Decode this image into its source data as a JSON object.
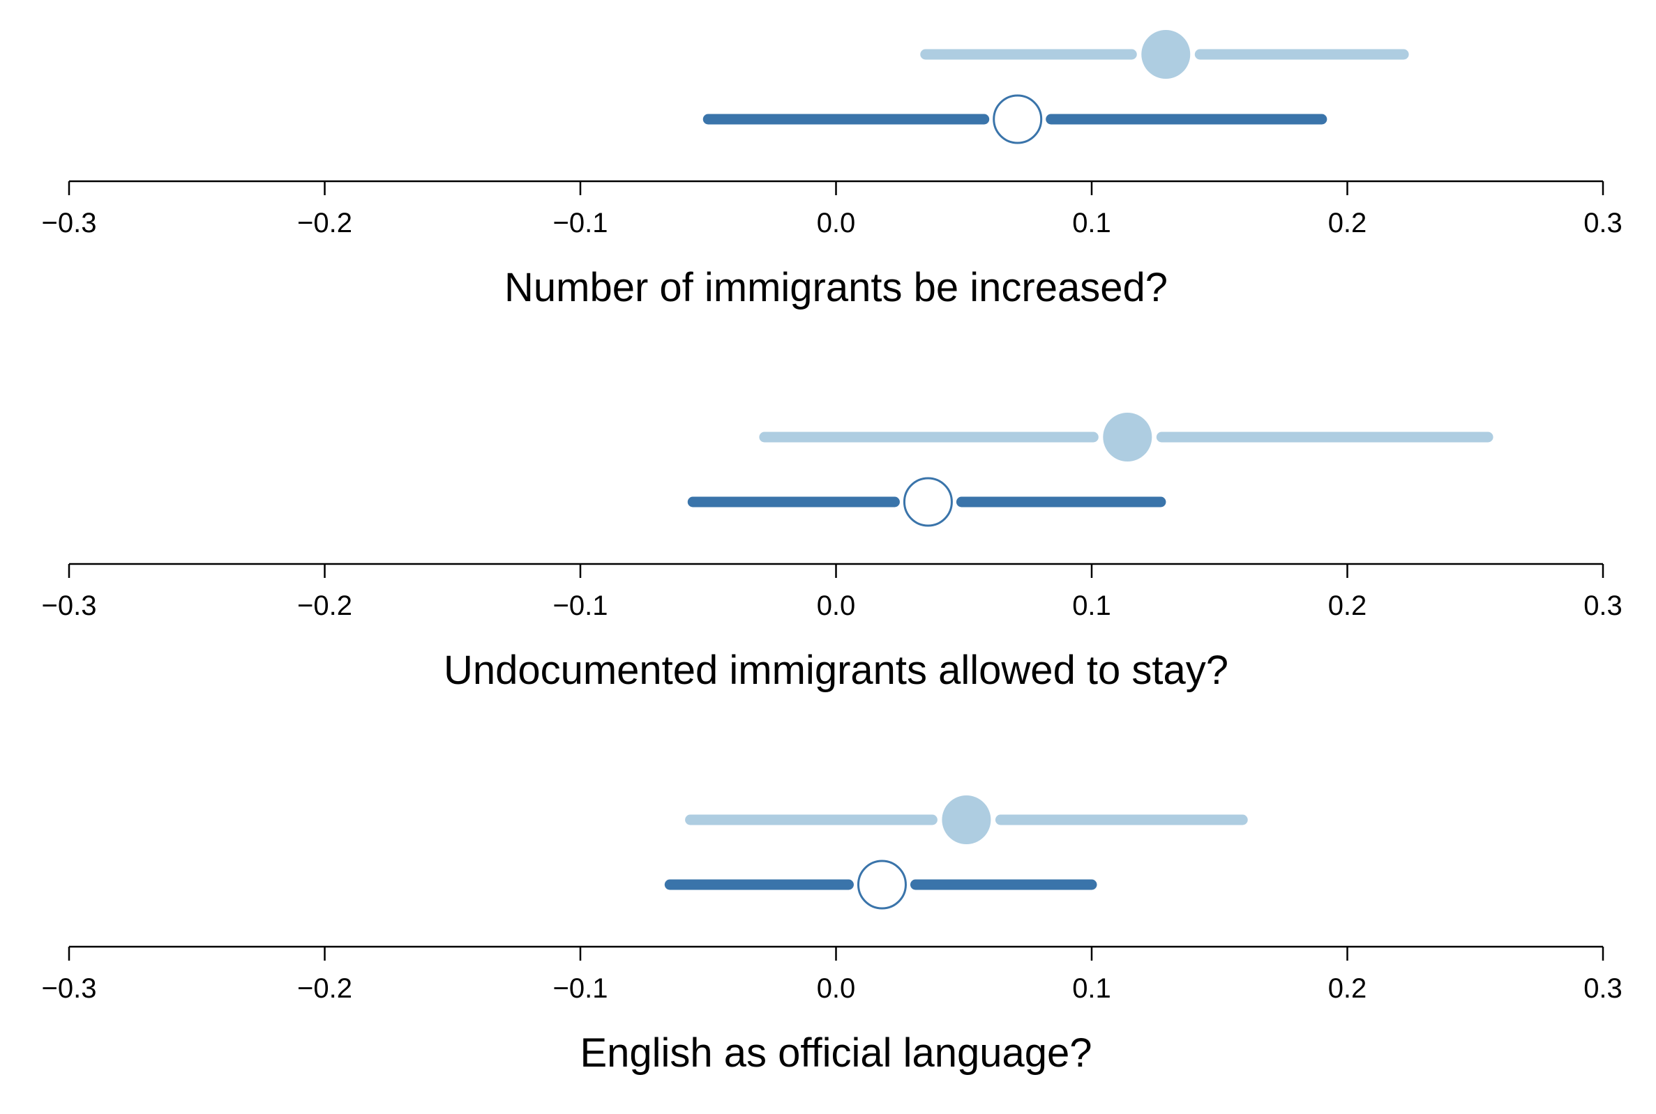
{
  "colors": {
    "light_series": "#aecde1",
    "dark_series": "#3a74aa",
    "axis": "#000000",
    "background": "#ffffff"
  },
  "chart_data": [
    {
      "type": "forest-plot",
      "xlabel": "Number of immigrants be increased?",
      "xlim": [
        -0.3,
        0.3
      ],
      "ticks": [
        -0.3,
        -0.2,
        -0.1,
        0.0,
        0.1,
        0.2,
        0.3
      ],
      "tick_labels": [
        "−0.3",
        "−0.2",
        "−0.1",
        "0.0",
        "0.1",
        "0.2",
        "0.3"
      ],
      "grid": false,
      "series": [
        {
          "marker": "filled",
          "estimate": 0.129,
          "lower": 0.035,
          "upper": 0.222
        },
        {
          "marker": "open",
          "estimate": 0.071,
          "lower": -0.05,
          "upper": 0.19
        }
      ]
    },
    {
      "type": "forest-plot",
      "xlabel": "Undocumented immigrants allowed to stay?",
      "xlim": [
        -0.3,
        0.3
      ],
      "ticks": [
        -0.3,
        -0.2,
        -0.1,
        0.0,
        0.1,
        0.2,
        0.3
      ],
      "tick_labels": [
        "−0.3",
        "−0.2",
        "−0.1",
        "0.0",
        "0.1",
        "0.2",
        "0.3"
      ],
      "grid": false,
      "series": [
        {
          "marker": "filled",
          "estimate": 0.114,
          "lower": -0.028,
          "upper": 0.255
        },
        {
          "marker": "open",
          "estimate": 0.036,
          "lower": -0.056,
          "upper": 0.127
        }
      ]
    },
    {
      "type": "forest-plot",
      "xlabel": "English as official language?",
      "xlim": [
        -0.3,
        0.3
      ],
      "ticks": [
        -0.3,
        -0.2,
        -0.1,
        0.0,
        0.1,
        0.2,
        0.3
      ],
      "tick_labels": [
        "−0.3",
        "−0.2",
        "−0.1",
        "0.0",
        "0.1",
        "0.2",
        "0.3"
      ],
      "grid": false,
      "series": [
        {
          "marker": "filled",
          "estimate": 0.051,
          "lower": -0.057,
          "upper": 0.159
        },
        {
          "marker": "open",
          "estimate": 0.018,
          "lower": -0.065,
          "upper": 0.1
        }
      ]
    }
  ]
}
